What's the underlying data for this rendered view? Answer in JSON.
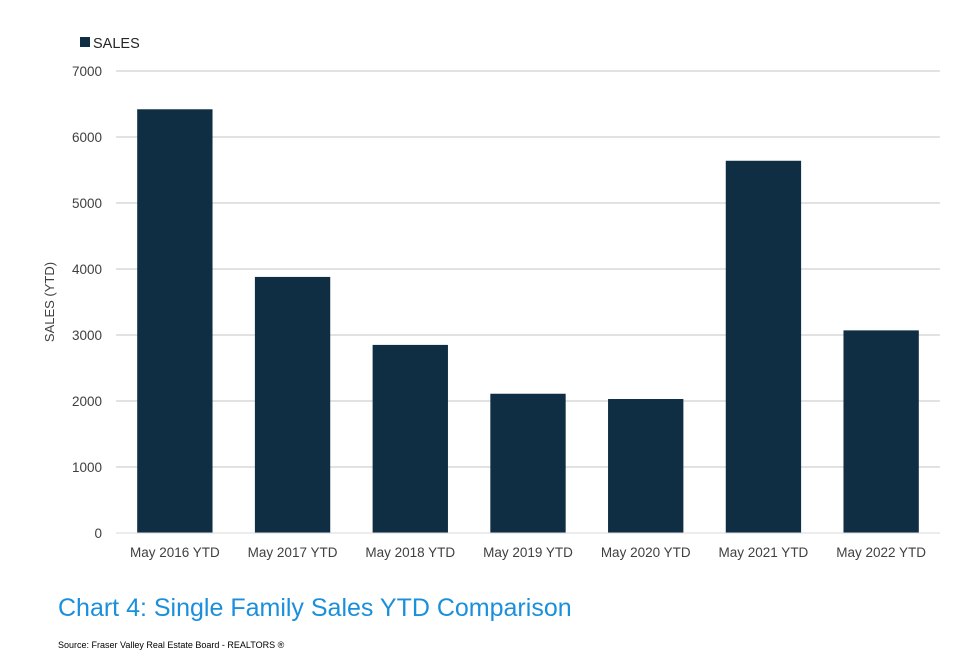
{
  "chart_data": {
    "type": "bar",
    "categories": [
      "May 2016 YTD",
      "May 2017 YTD",
      "May 2018 YTD",
      "May 2019 YTD",
      "May 2020 YTD",
      "May 2021 YTD",
      "May 2022 YTD"
    ],
    "series": [
      {
        "name": "SALES",
        "values": [
          6420,
          3880,
          2850,
          2110,
          2030,
          5640,
          3070
        ]
      }
    ],
    "ylabel": "SALES (YTD)",
    "ylim": [
      0,
      7000
    ],
    "yticks": [
      0,
      1000,
      2000,
      3000,
      4000,
      5000,
      6000,
      7000
    ],
    "grid": true,
    "legend_position": "top-left",
    "bar_color": "#0f2d43",
    "grid_color": "#d9d9d9"
  },
  "caption": "Chart 4: Single Family Sales YTD Comparison",
  "source": "Source: Fraser Valley Real Estate Board - REALTORS ®"
}
